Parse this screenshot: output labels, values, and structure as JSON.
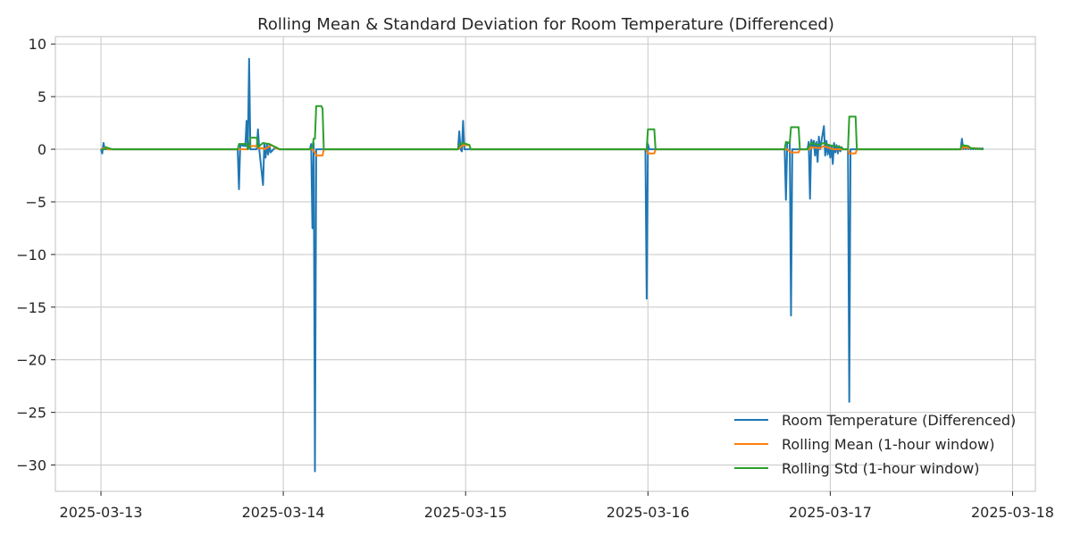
{
  "chart_data": {
    "type": "line",
    "title": "Rolling Mean & Standard Deviation for Room Temperature (Differenced)",
    "xlabel": "",
    "ylabel": "",
    "x_ticks": [
      "2025-03-13",
      "2025-03-14",
      "2025-03-15",
      "2025-03-16",
      "2025-03-17",
      "2025-03-18"
    ],
    "y_ticks": [
      10,
      5,
      0,
      -5,
      -10,
      -15,
      -20,
      -25,
      -30
    ],
    "xlim": [
      "2025-03-12T18:00",
      "2025-03-18T03:00"
    ],
    "ylim": [
      -32.5,
      10.7
    ],
    "grid": true,
    "legend_position": "lower-right",
    "series": [
      {
        "name": "Room Temperature (Differenced)",
        "color": "#1f77b4",
        "points": [
          [
            "2025-03-13T00:00",
            0
          ],
          [
            "2025-03-13T00:10",
            -0.4
          ],
          [
            "2025-03-13T00:20",
            0.6
          ],
          [
            "2025-03-13T00:30",
            0
          ],
          [
            "2025-03-13T01:30",
            0
          ],
          [
            "2025-03-13T18:00",
            0
          ],
          [
            "2025-03-13T18:10",
            -3.8
          ],
          [
            "2025-03-13T18:20",
            0.4
          ],
          [
            "2025-03-13T19:00",
            0.3
          ],
          [
            "2025-03-13T19:10",
            2.7
          ],
          [
            "2025-03-13T19:20",
            0
          ],
          [
            "2025-03-13T19:30",
            8.6
          ],
          [
            "2025-03-13T19:40",
            0
          ],
          [
            "2025-03-13T20:30",
            0
          ],
          [
            "2025-03-13T20:40",
            1.9
          ],
          [
            "2025-03-13T20:50",
            0
          ],
          [
            "2025-03-13T21:20",
            -3.4
          ],
          [
            "2025-03-13T21:30",
            0.5
          ],
          [
            "2025-03-13T21:40",
            -0.8
          ],
          [
            "2025-03-13T21:50",
            0.5
          ],
          [
            "2025-03-13T22:00",
            -0.5
          ],
          [
            "2025-03-13T22:10",
            0.4
          ],
          [
            "2025-03-13T22:20",
            -0.3
          ],
          [
            "2025-03-13T23:00",
            0.2
          ],
          [
            "2025-03-13T23:30",
            0
          ],
          [
            "2025-03-14T03:30",
            0
          ],
          [
            "2025-03-14T03:40",
            0.5
          ],
          [
            "2025-03-14T03:50",
            -7.5
          ],
          [
            "2025-03-14T04:00",
            0.6
          ],
          [
            "2025-03-14T04:10",
            -30.6
          ],
          [
            "2025-03-14T04:20",
            0
          ],
          [
            "2025-03-14T23:00",
            0
          ],
          [
            "2025-03-14T23:10",
            1.7
          ],
          [
            "2025-03-14T23:20",
            0
          ],
          [
            "2025-03-14T23:30",
            -0.2
          ],
          [
            "2025-03-14T23:40",
            2.7
          ],
          [
            "2025-03-14T23:50",
            0
          ],
          [
            "2025-03-15T23:40",
            0
          ],
          [
            "2025-03-15T23:50",
            -14.2
          ],
          [
            "2025-03-16T00:00",
            0.5
          ],
          [
            "2025-03-16T00:10",
            0
          ],
          [
            "2025-03-16T01:00",
            0
          ],
          [
            "2025-03-16T18:00",
            0
          ],
          [
            "2025-03-16T18:10",
            -4.8
          ],
          [
            "2025-03-16T18:20",
            0.6
          ],
          [
            "2025-03-16T18:40",
            0.6
          ],
          [
            "2025-03-16T18:50",
            -15.8
          ],
          [
            "2025-03-16T19:00",
            0
          ],
          [
            "2025-03-16T21:00",
            0
          ],
          [
            "2025-03-16T21:10",
            0.7
          ],
          [
            "2025-03-16T21:20",
            -4.7
          ],
          [
            "2025-03-16T21:30",
            0.9
          ],
          [
            "2025-03-16T21:40",
            0.3
          ],
          [
            "2025-03-16T21:50",
            0.8
          ],
          [
            "2025-03-16T22:00",
            -0.6
          ],
          [
            "2025-03-16T22:10",
            0.7
          ],
          [
            "2025-03-16T22:20",
            -1.2
          ],
          [
            "2025-03-16T22:30",
            1.2
          ],
          [
            "2025-03-16T22:40",
            0
          ],
          [
            "2025-03-16T23:10",
            2.2
          ],
          [
            "2025-03-16T23:20",
            -0.6
          ],
          [
            "2025-03-16T23:30",
            0.8
          ],
          [
            "2025-03-16T23:40",
            -0.5
          ],
          [
            "2025-03-16T23:50",
            0.4
          ],
          [
            "2025-03-17T00:00",
            -0.8
          ],
          [
            "2025-03-17T00:10",
            0.3
          ],
          [
            "2025-03-17T00:20",
            -1.4
          ],
          [
            "2025-03-17T00:30",
            0.6
          ],
          [
            "2025-03-17T00:40",
            -0.3
          ],
          [
            "2025-03-17T00:50",
            0.4
          ],
          [
            "2025-03-17T01:00",
            -0.4
          ],
          [
            "2025-03-17T01:10",
            0.3
          ],
          [
            "2025-03-17T01:20",
            -0.2
          ],
          [
            "2025-03-17T01:30",
            0.2
          ],
          [
            "2025-03-17T01:40",
            0
          ],
          [
            "2025-03-17T02:20",
            0
          ],
          [
            "2025-03-17T02:30",
            -24
          ],
          [
            "2025-03-17T02:40",
            0
          ],
          [
            "2025-03-17T17:10",
            0
          ],
          [
            "2025-03-17T17:20",
            1
          ],
          [
            "2025-03-17T17:30",
            0
          ],
          [
            "2025-03-17T17:40",
            0.3
          ],
          [
            "2025-03-17T17:50",
            0
          ],
          [
            "2025-03-17T18:00",
            0.2
          ],
          [
            "2025-03-17T18:10",
            0
          ],
          [
            "2025-03-17T18:20",
            0.1
          ],
          [
            "2025-03-17T18:30",
            0
          ],
          [
            "2025-03-17T18:40",
            0.1
          ],
          [
            "2025-03-17T18:50",
            0
          ],
          [
            "2025-03-17T19:00",
            0.1
          ],
          [
            "2025-03-17T19:10",
            0
          ],
          [
            "2025-03-17T19:20",
            0.1
          ],
          [
            "2025-03-17T19:30",
            0
          ],
          [
            "2025-03-17T19:40",
            0.1
          ],
          [
            "2025-03-17T19:50",
            0
          ],
          [
            "2025-03-17T20:00",
            0.1
          ],
          [
            "2025-03-17T20:10",
            0
          ]
        ]
      },
      {
        "name": "Rolling Mean (1-hour window)",
        "color": "#ff7f0e",
        "points": [
          [
            "2025-03-13T00:00",
            0
          ],
          [
            "2025-03-13T00:30",
            0.1
          ],
          [
            "2025-03-13T01:00",
            0
          ],
          [
            "2025-03-13T18:00",
            0
          ],
          [
            "2025-03-13T19:20",
            0
          ],
          [
            "2025-03-13T19:30",
            0.3
          ],
          [
            "2025-03-13T20:30",
            0.3
          ],
          [
            "2025-03-13T20:40",
            0.1
          ],
          [
            "2025-03-13T21:20",
            0.1
          ],
          [
            "2025-03-13T21:30",
            0
          ],
          [
            "2025-03-13T22:30",
            0.4
          ],
          [
            "2025-03-13T23:00",
            0.1
          ],
          [
            "2025-03-13T23:30",
            0
          ],
          [
            "2025-03-14T03:50",
            0
          ],
          [
            "2025-03-14T04:10",
            -0.3
          ],
          [
            "2025-03-14T04:20",
            -0.6
          ],
          [
            "2025-03-14T05:10",
            -0.6
          ],
          [
            "2025-03-14T05:20",
            0
          ],
          [
            "2025-03-14T23:00",
            0
          ],
          [
            "2025-03-14T23:40",
            0.4
          ],
          [
            "2025-03-15T00:30",
            0.4
          ],
          [
            "2025-03-15T00:40",
            0
          ],
          [
            "2025-03-15T23:50",
            0
          ],
          [
            "2025-03-16T00:00",
            -0.4
          ],
          [
            "2025-03-16T00:50",
            -0.4
          ],
          [
            "2025-03-16T01:00",
            0
          ],
          [
            "2025-03-16T18:10",
            0
          ],
          [
            "2025-03-16T18:20",
            0
          ],
          [
            "2025-03-16T18:50",
            -0.3
          ],
          [
            "2025-03-16T19:50",
            -0.3
          ],
          [
            "2025-03-16T20:00",
            0
          ],
          [
            "2025-03-16T21:20",
            0
          ],
          [
            "2025-03-16T21:30",
            0.2
          ],
          [
            "2025-03-16T22:40",
            0.1
          ],
          [
            "2025-03-16T23:10",
            0.3
          ],
          [
            "2025-03-17T00:20",
            0
          ],
          [
            "2025-03-17T01:40",
            0
          ],
          [
            "2025-03-17T02:20",
            0
          ],
          [
            "2025-03-17T02:30",
            -0.4
          ],
          [
            "2025-03-17T03:20",
            -0.4
          ],
          [
            "2025-03-17T03:30",
            0
          ],
          [
            "2025-03-17T17:20",
            0
          ],
          [
            "2025-03-17T17:30",
            0.2
          ],
          [
            "2025-03-17T18:20",
            0.1
          ],
          [
            "2025-03-17T19:00",
            0.1
          ],
          [
            "2025-03-17T20:10",
            0
          ]
        ]
      },
      {
        "name": "Rolling Std (1-hour window)",
        "color": "#2ca02c",
        "points": [
          [
            "2025-03-13T00:00",
            0
          ],
          [
            "2025-03-13T00:30",
            0
          ],
          [
            "2025-03-13T00:40",
            0.2
          ],
          [
            "2025-03-13T01:00",
            0.1
          ],
          [
            "2025-03-13T01:30",
            0
          ],
          [
            "2025-03-13T18:00",
            0
          ],
          [
            "2025-03-13T18:10",
            0.5
          ],
          [
            "2025-03-13T19:10",
            0.5
          ],
          [
            "2025-03-13T19:20",
            0
          ],
          [
            "2025-03-13T19:30",
            0.2
          ],
          [
            "2025-03-13T19:40",
            1.1
          ],
          [
            "2025-03-13T20:30",
            1.1
          ],
          [
            "2025-03-13T20:40",
            0.2
          ],
          [
            "2025-03-13T21:20",
            0.6
          ],
          [
            "2025-03-13T22:10",
            0.5
          ],
          [
            "2025-03-13T22:40",
            0.3
          ],
          [
            "2025-03-13T23:00",
            0.2
          ],
          [
            "2025-03-13T23:30",
            0
          ],
          [
            "2025-03-14T03:30",
            0
          ],
          [
            "2025-03-14T03:50",
            0.2
          ],
          [
            "2025-03-14T04:00",
            1
          ],
          [
            "2025-03-14T04:10",
            1
          ],
          [
            "2025-03-14T04:20",
            4.1
          ],
          [
            "2025-03-14T05:00",
            4.1
          ],
          [
            "2025-03-14T05:10",
            3.9
          ],
          [
            "2025-03-14T05:20",
            0
          ],
          [
            "2025-03-14T23:00",
            0
          ],
          [
            "2025-03-14T23:10",
            0.5
          ],
          [
            "2025-03-14T23:30",
            0.5
          ],
          [
            "2025-03-14T23:40",
            0.6
          ],
          [
            "2025-03-15T00:30",
            0.4
          ],
          [
            "2025-03-15T00:40",
            0
          ],
          [
            "2025-03-15T23:40",
            0
          ],
          [
            "2025-03-15T23:50",
            0
          ],
          [
            "2025-03-16T00:00",
            1.9
          ],
          [
            "2025-03-16T00:50",
            1.9
          ],
          [
            "2025-03-16T01:00",
            0
          ],
          [
            "2025-03-16T18:00",
            0
          ],
          [
            "2025-03-16T18:10",
            0.7
          ],
          [
            "2025-03-16T18:40",
            0.6
          ],
          [
            "2025-03-16T18:50",
            2.1
          ],
          [
            "2025-03-16T19:50",
            2.1
          ],
          [
            "2025-03-16T20:00",
            0
          ],
          [
            "2025-03-16T21:00",
            0
          ],
          [
            "2025-03-16T21:30",
            0.6
          ],
          [
            "2025-03-16T22:00",
            0.5
          ],
          [
            "2025-03-16T22:30",
            0.4
          ],
          [
            "2025-03-16T23:10",
            0.6
          ],
          [
            "2025-03-16T23:50",
            0.4
          ],
          [
            "2025-03-17T00:30",
            0.3
          ],
          [
            "2025-03-17T01:20",
            0.2
          ],
          [
            "2025-03-17T01:40",
            0
          ],
          [
            "2025-03-17T02:20",
            0
          ],
          [
            "2025-03-17T02:30",
            3.1
          ],
          [
            "2025-03-17T03:20",
            3.1
          ],
          [
            "2025-03-17T03:30",
            0
          ],
          [
            "2025-03-17T17:10",
            0
          ],
          [
            "2025-03-17T17:20",
            0.4
          ],
          [
            "2025-03-17T18:10",
            0.3
          ],
          [
            "2025-03-17T18:30",
            0.1
          ],
          [
            "2025-03-17T20:10",
            0
          ]
        ]
      }
    ]
  }
}
